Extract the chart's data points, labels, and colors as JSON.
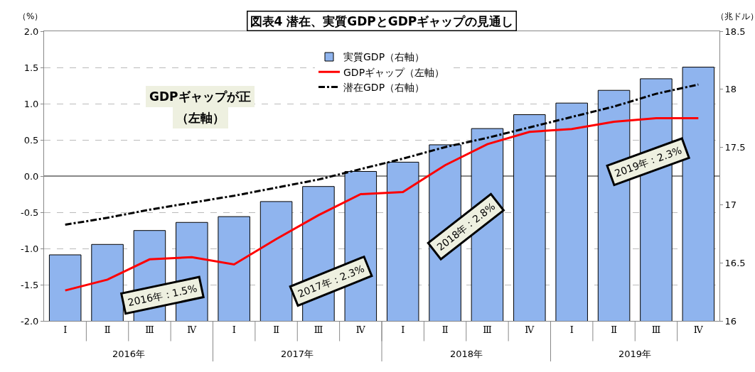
{
  "chart_data": {
    "type": "bar",
    "title": "図表4 潜在、実質GDPとGDPギャップの見通し",
    "ylabel": "（%）",
    "y2label": "（兆ドル）",
    "categories": [
      "Ⅰ",
      "Ⅱ",
      "Ⅲ",
      "Ⅳ",
      "Ⅰ",
      "Ⅱ",
      "Ⅲ",
      "Ⅳ",
      "Ⅰ",
      "Ⅱ",
      "Ⅲ",
      "Ⅳ",
      "Ⅰ",
      "Ⅱ",
      "Ⅲ",
      "Ⅳ"
    ],
    "series": [
      {
        "name": "実質GDP（右軸）",
        "axis": "y2",
        "color": "#8fb4ee",
        "values": [
          16.57,
          16.66,
          16.78,
          16.85,
          16.9,
          17.03,
          17.16,
          17.29,
          17.37,
          17.52,
          17.66,
          17.78,
          17.88,
          17.99,
          18.09,
          18.19
        ]
      },
      {
        "name": "GDPギャップ（左軸）",
        "type": "line",
        "color": "#ff0000",
        "line_style": "solid",
        "values": [
          -1.58,
          -1.43,
          -1.15,
          -1.12,
          -1.22,
          -0.87,
          -0.54,
          -0.25,
          -0.22,
          0.15,
          0.44,
          0.61,
          0.65,
          0.75,
          0.8,
          0.8
        ]
      },
      {
        "name": "潜在GDP（右軸）",
        "type": "line",
        "axis": "y2",
        "color": "#000000",
        "line_style": "dashdot",
        "values": [
          16.83,
          16.89,
          16.96,
          17.02,
          17.08,
          17.15,
          17.22,
          17.31,
          17.4,
          17.5,
          17.58,
          17.67,
          17.76,
          17.85,
          17.96,
          18.04
        ]
      }
    ],
    "ylim": [
      -2.0,
      2.0
    ],
    "yticks": [
      {
        "value": -2,
        "label": "-2.0"
      },
      {
        "value": -1.5,
        "label": "-1.5"
      },
      {
        "value": -1,
        "label": "-1.0"
      },
      {
        "value": -0.5,
        "label": "-0.5"
      },
      {
        "value": 0,
        "label": "0.0"
      },
      {
        "value": 0.5,
        "label": "0.5"
      },
      {
        "value": 1,
        "label": "1.0"
      },
      {
        "value": 1.5,
        "label": "1.5"
      },
      {
        "value": 2,
        "label": "2.0"
      }
    ],
    "y2lim": [
      16,
      18.5
    ],
    "y2ticks": [
      16,
      16.5,
      17,
      17.5,
      18,
      18.5
    ],
    "grid": "y",
    "legend": "top",
    "annotations": [
      "GDPギャップが正",
      "（左軸）",
      "2016年：1.5%",
      "2017年：2.3%",
      "2018年：2.8%",
      "2019年：2.3%",
      "2016年",
      "2017年",
      "2018年",
      "2019年"
    ]
  }
}
